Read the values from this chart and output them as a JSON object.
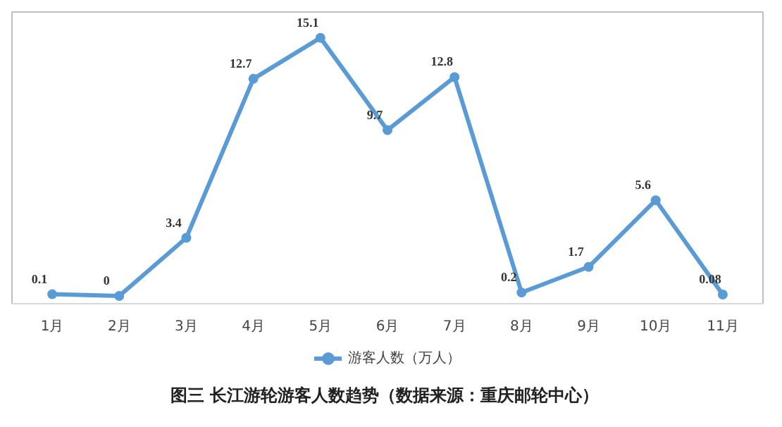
{
  "chart_data": {
    "type": "line",
    "title": "图三  长江游轮游客人数趋势（数据来源：重庆邮轮中心）",
    "categories": [
      "1月",
      "2月",
      "3月",
      "4月",
      "5月",
      "6月",
      "7月",
      "8月",
      "9月",
      "10月",
      "11月"
    ],
    "series": [
      {
        "name": "游客人数（万人）",
        "color": "#5b9bd5",
        "values": [
          0.1,
          0,
          3.4,
          12.7,
          15.1,
          9.7,
          12.8,
          0.2,
          1.7,
          5.6,
          0.08
        ]
      }
    ],
    "data_labels": true,
    "legend": "bottom",
    "marker": "circle",
    "grid": false
  }
}
